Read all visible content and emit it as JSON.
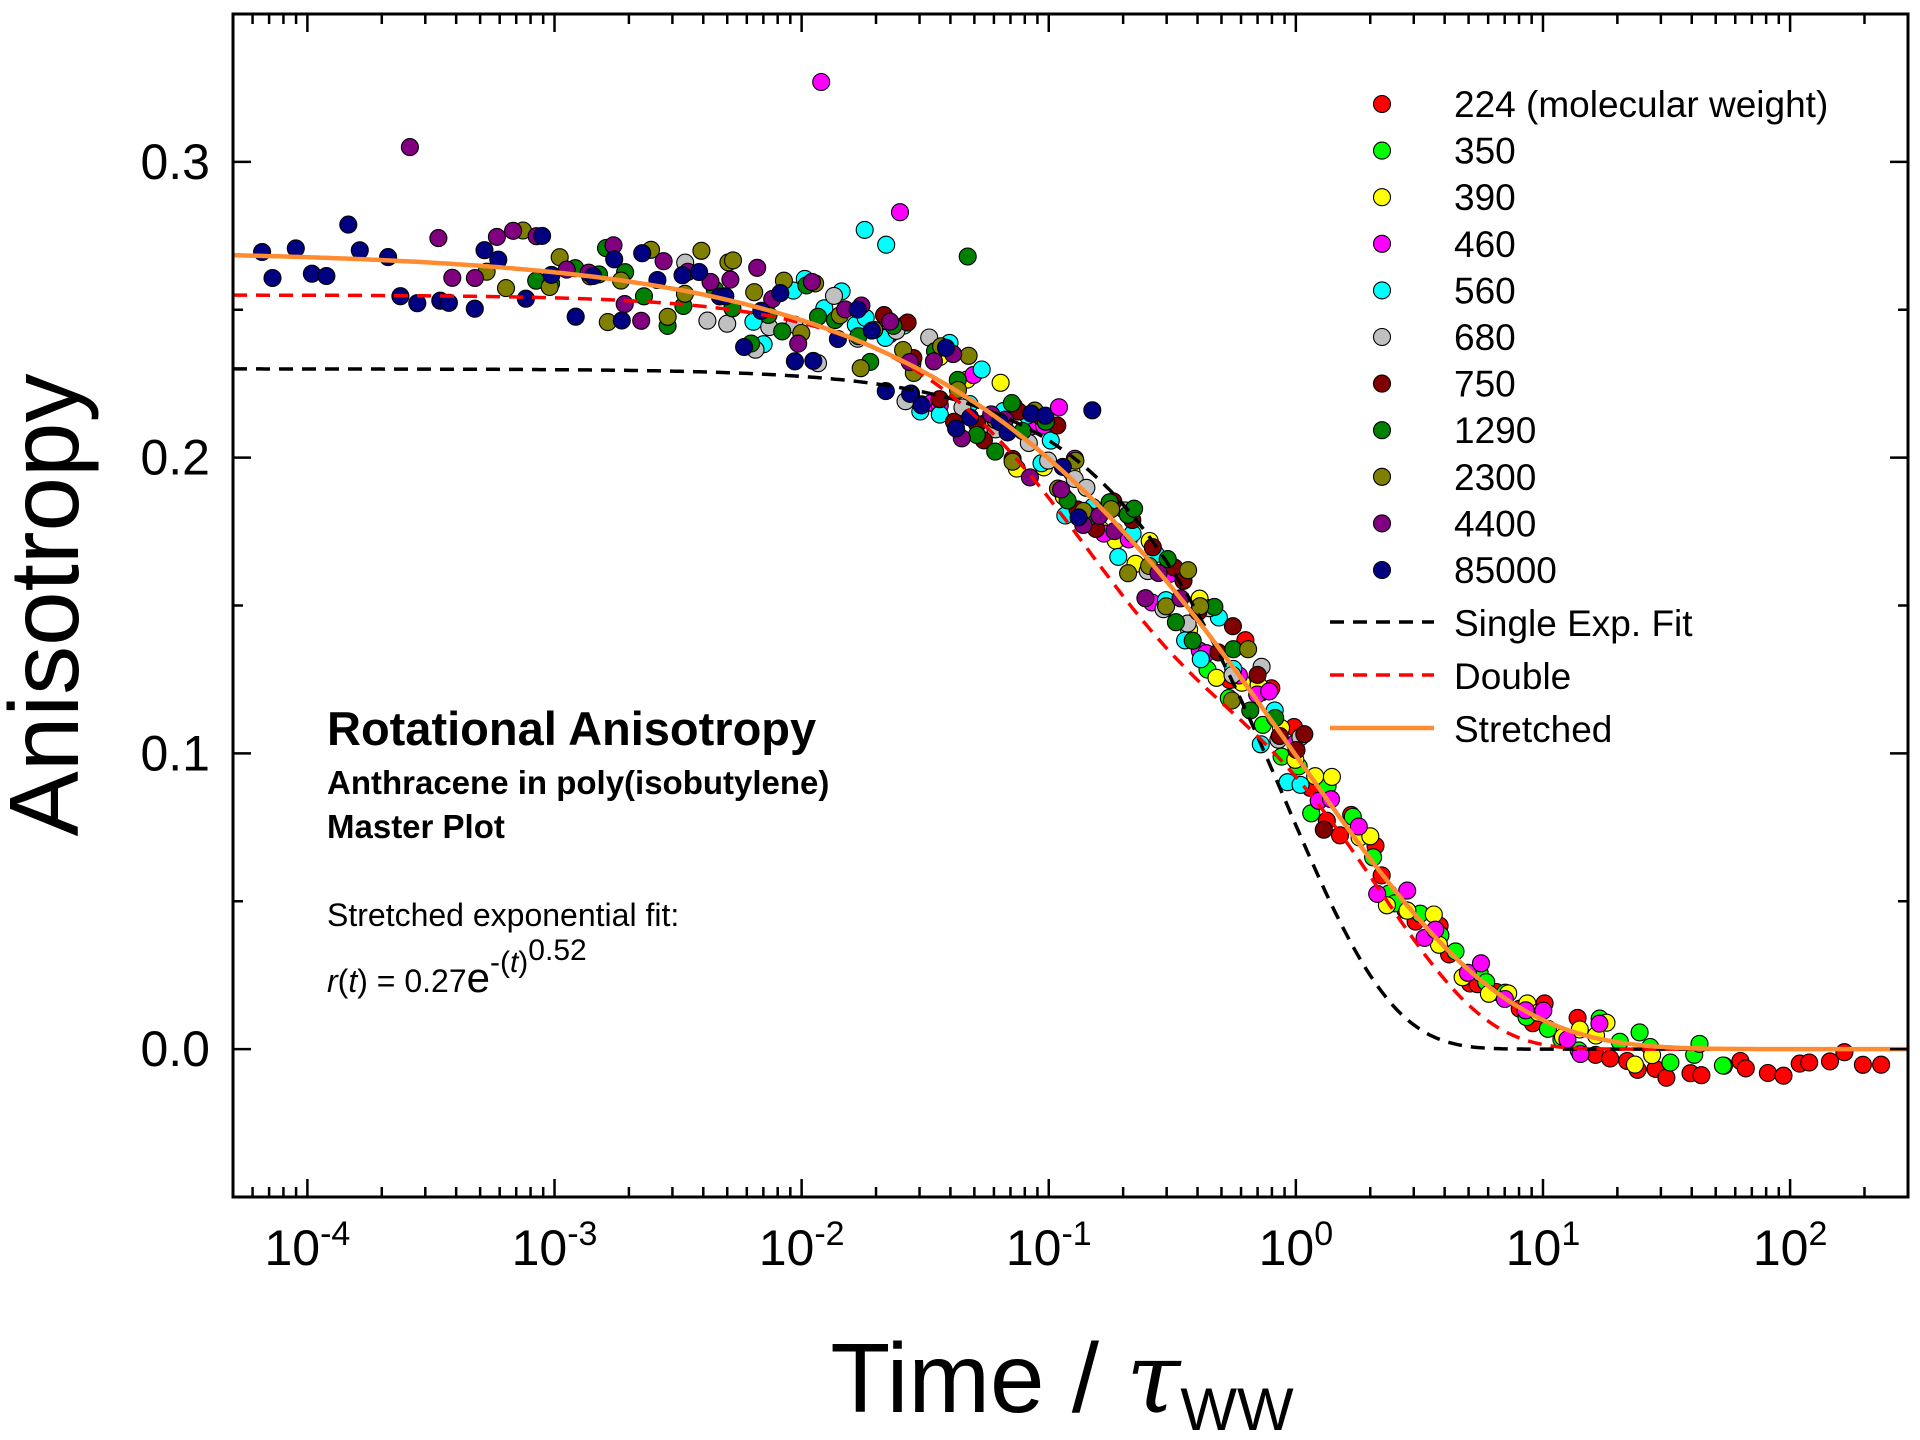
{
  "chart_data": {
    "type": "scatter",
    "x_scale": "log",
    "xlim": [
      5e-05,
      300
    ],
    "ylim": [
      -0.05,
      0.35
    ],
    "xlabel": "Time / ",
    "xlabel_symbol": "τ",
    "xlabel_subscript": "WW",
    "ylabel": "Anisotropy",
    "x_ticks": [
      {
        "base": "10",
        "exp": "-4",
        "value": 0.0001
      },
      {
        "base": "10",
        "exp": "-3",
        "value": 0.001
      },
      {
        "base": "10",
        "exp": "-2",
        "value": 0.01
      },
      {
        "base": "10",
        "exp": "-1",
        "value": 0.1
      },
      {
        "base": "10",
        "exp": "0",
        "value": 1
      },
      {
        "base": "10",
        "exp": "1",
        "value": 10
      },
      {
        "base": "10",
        "exp": "2",
        "value": 100
      }
    ],
    "y_ticks": [
      {
        "label": "0.0",
        "value": 0.0
      },
      {
        "label": "0.1",
        "value": 0.1
      },
      {
        "label": "0.2",
        "value": 0.2
      },
      {
        "label": "0.3",
        "value": 0.3
      }
    ],
    "grid": false,
    "legend_position": "top-right",
    "annotation": {
      "title": "Rotational Anisotropy",
      "subtitle1": "Anthracene in poly(isobutylene)",
      "subtitle2": "Master Plot",
      "fit_label": "Stretched exponential fit:",
      "eq_r": "r",
      "eq_t": "t",
      "eq_paren_open": "(",
      "eq_paren_close": ")",
      "eq_equals": " = ",
      "eq_coef": "0.27",
      "eq_e": "e",
      "eq_exp_prefix": "-(",
      "eq_exp_t": "t",
      "eq_exp_suffix": ")",
      "eq_power": "0.52"
    },
    "series": [
      {
        "name": "224 (molecular weight)",
        "color": "#ff0000",
        "x_range": [
          0.5,
          250
        ],
        "n": 42
      },
      {
        "name": "350",
        "color": "#00ff00",
        "x_range": [
          0.4,
          60
        ],
        "n": 30
      },
      {
        "name": "390",
        "color": "#ffff00",
        "x_range": [
          0.03,
          30
        ],
        "n": 40
      },
      {
        "name": "460",
        "color": "#ff00ff",
        "x_range": [
          0.02,
          20
        ],
        "n": 36
      },
      {
        "name": "560",
        "color": "#00ffff",
        "x_range": [
          0.006,
          1.2
        ],
        "n": 34
      },
      {
        "name": "680",
        "color": "#c0c0c0",
        "x_range": [
          0.003,
          1.2
        ],
        "n": 28
      },
      {
        "name": "750",
        "color": "#800000",
        "x_range": [
          0.02,
          1.5
        ],
        "n": 26
      },
      {
        "name": "1290",
        "color": "#008000",
        "x_range": [
          0.0008,
          0.9
        ],
        "n": 40
      },
      {
        "name": "2300",
        "color": "#808000",
        "x_range": [
          0.0005,
          0.7
        ],
        "n": 40
      },
      {
        "name": "4400",
        "color": "#800080",
        "x_range": [
          0.0003,
          0.4
        ],
        "n": 36
      },
      {
        "name": "85000",
        "color": "#000080",
        "x_range": [
          6e-05,
          0.15
        ],
        "n": 48
      }
    ],
    "outliers": [
      {
        "x": 0.00026,
        "y": 0.305,
        "series": "4400"
      },
      {
        "x": 0.012,
        "y": 0.327,
        "series": "460"
      },
      {
        "x": 0.025,
        "y": 0.283,
        "series": "460"
      },
      {
        "x": 0.018,
        "y": 0.277,
        "series": "560"
      },
      {
        "x": 0.022,
        "y": 0.272,
        "series": "560"
      },
      {
        "x": 0.047,
        "y": 0.268,
        "series": "1290"
      },
      {
        "x": 0.15,
        "y": 0.216,
        "series": "85000"
      },
      {
        "x": 0.11,
        "y": 0.217,
        "series": "460"
      }
    ],
    "fits": [
      {
        "name": "Single Exp. Fit",
        "color": "#000000",
        "dash": "dashed",
        "model": "exp",
        "a": 0.23,
        "tau": 0.9,
        "beta": 1.0
      },
      {
        "name": "Double",
        "color": "#ff0000",
        "dash": "dashed",
        "model": "biexp",
        "a1": 0.11,
        "tau1": 0.12,
        "a2": 0.145,
        "tau2": 2.2
      },
      {
        "name": "Stretched",
        "color": "#ff8c30",
        "dash": "solid",
        "model": "stretched",
        "a": 0.27,
        "tau": 1.0,
        "beta": 0.52
      }
    ]
  }
}
